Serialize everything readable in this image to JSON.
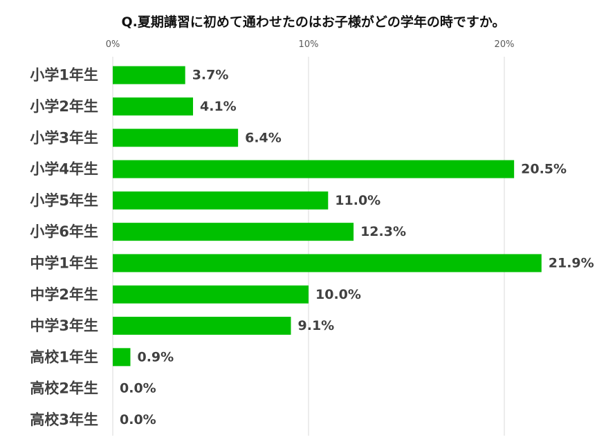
{
  "chart_data": {
    "type": "bar",
    "orientation": "horizontal",
    "title": "Q.夏期講習に初めて通わせたのはお子様がどの学年の時ですか。",
    "categories": [
      "小学1年生",
      "小学2年生",
      "小学3年生",
      "小学4年生",
      "小学5年生",
      "小学6年生",
      "中学1年生",
      "中学2年生",
      "中学3年生",
      "高校1年生",
      "高校2年生",
      "高校3年生"
    ],
    "values": [
      3.7,
      4.1,
      6.4,
      20.5,
      11.0,
      12.3,
      21.9,
      10.0,
      9.1,
      0.9,
      0.0,
      0.0
    ],
    "data_labels": [
      "3.7%",
      "4.1%",
      "6.4%",
      "20.5%",
      "11.0%",
      "12.3%",
      "21.9%",
      "10.0%",
      "9.1%",
      "0.9%",
      "0.0%",
      "0.0%"
    ],
    "x_ticks": [
      0,
      10,
      20
    ],
    "x_tick_labels": [
      "0%",
      "10%",
      "20%"
    ],
    "xlim": [
      0,
      25
    ],
    "x_axis_position": "top",
    "grid": true,
    "legend": "none",
    "bar_color": "#00c000",
    "grid_color": "#d9d9d9"
  }
}
